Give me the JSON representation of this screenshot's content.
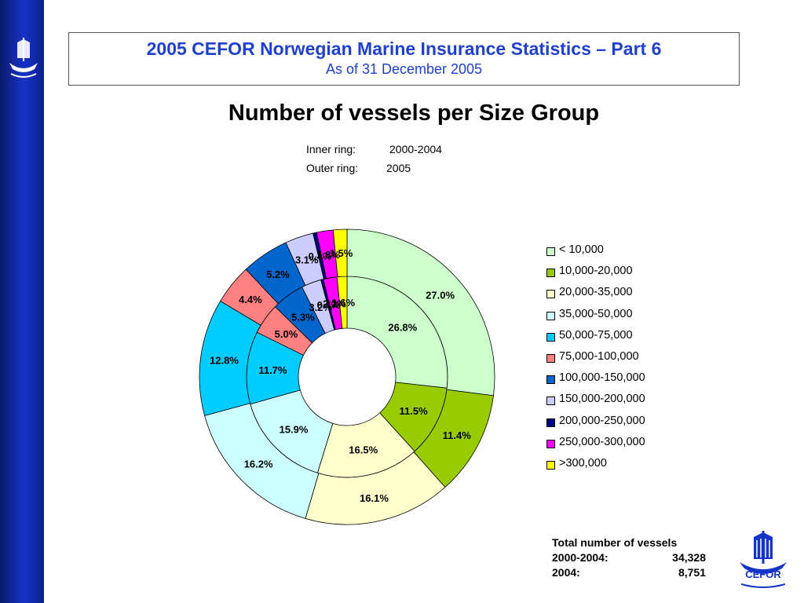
{
  "header": {
    "title": "2005 CEFOR Norwegian Marine Insurance Statistics – Part 6",
    "subtitle": "As of 31 December 2005"
  },
  "logo": {
    "text": "CEFOR"
  },
  "colors": {
    "sidebar": "#1633c8",
    "title_text": "#1f3fd1"
  },
  "chart_data": {
    "type": "pie",
    "variant": "donut-two-ring",
    "title": "Number of vessels per Size Group",
    "rings": {
      "inner_label": "Inner ring:",
      "inner_value": "2000-2004",
      "outer_label": "Outer ring:",
      "outer_value": "2005"
    },
    "categories": [
      "< 10,000",
      "10,000-20,000",
      "20,000-35,000",
      "35,000-50,000",
      "50,000-75,000",
      "75,000-100,000",
      "100,000-150,000",
      "150,000-200,000",
      "200,000-250,000",
      "250,000-300,000",
      ">300,000"
    ],
    "colors": [
      "#ccffcc",
      "#99cc00",
      "#ffffcc",
      "#ccffff",
      "#00ccff",
      "#ff8080",
      "#0066cc",
      "#ccccff",
      "#000080",
      "#ff00ff",
      "#ffff00"
    ],
    "series": [
      {
        "ring": "inner",
        "values": [
          26.8,
          11.5,
          16.5,
          15.9,
          11.7,
          5.0,
          5.3,
          3.2,
          0.4,
          2.2,
          1.6
        ],
        "labels": [
          "26.8%",
          "11.5%",
          "16.5%",
          "15.9%",
          "11.7%",
          "5.0%",
          "5.3%",
          "3.2%",
          "0.4%",
          "2.2%",
          "1.6%"
        ]
      },
      {
        "ring": "outer",
        "values": [
          27.0,
          11.4,
          16.1,
          16.2,
          12.8,
          4.4,
          5.2,
          3.1,
          0.4,
          1.8,
          1.5
        ],
        "labels": [
          "27.0%",
          "11.4%",
          "16.1%",
          "16.2%",
          "12.8%",
          "4.4%",
          "5.2%",
          "3.1%",
          "0.4%",
          "1.8%",
          "1.5%"
        ]
      }
    ],
    "legend_position": "right"
  },
  "totals": {
    "heading": "Total number of vessels",
    "rows": [
      {
        "label": "2000-2004:",
        "value": "34,328"
      },
      {
        "label": "2004:",
        "value": "8,751"
      }
    ]
  }
}
